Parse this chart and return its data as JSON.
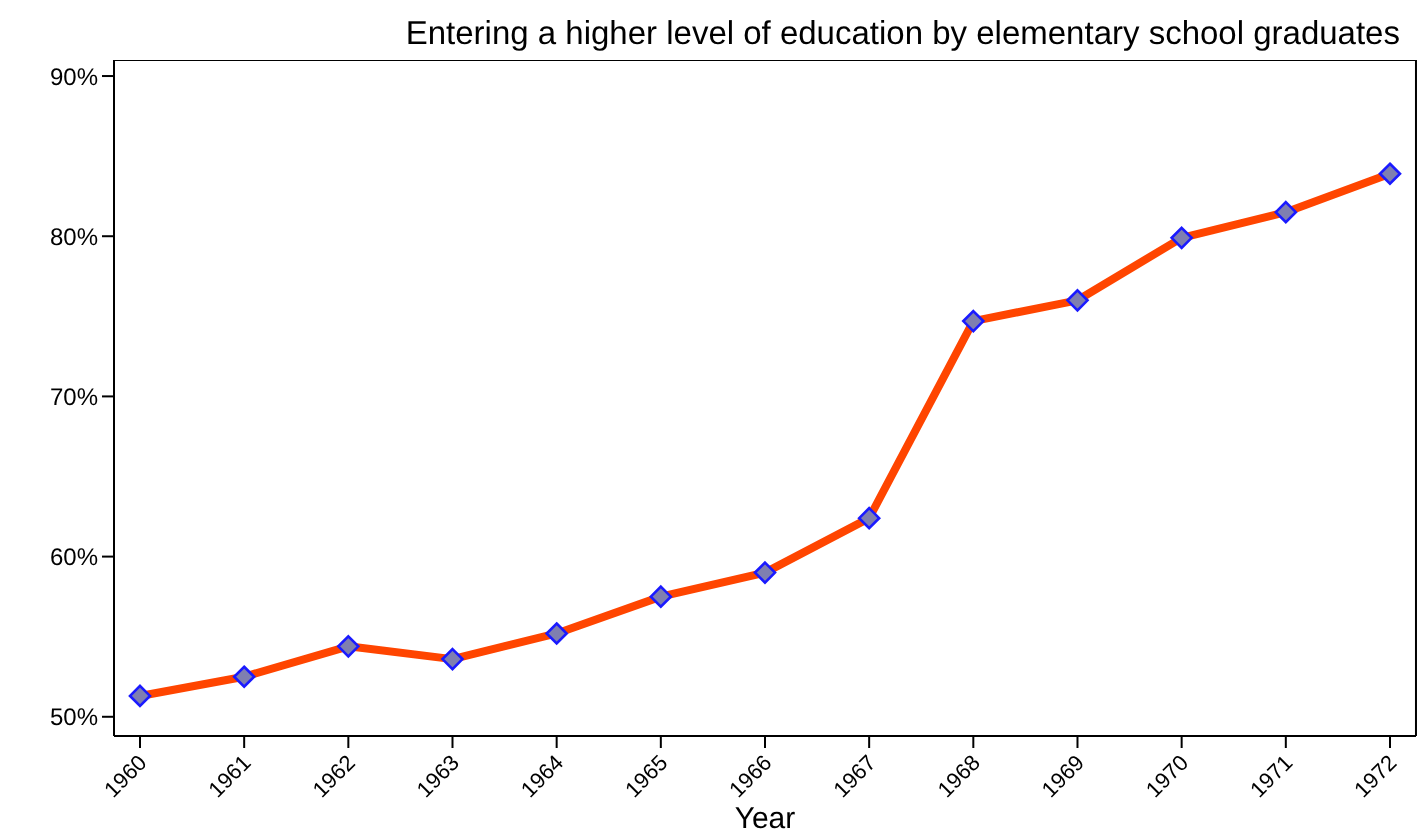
{
  "chart_data": {
    "type": "line",
    "title": "Entering a higher level of education by elementary school graduates",
    "xlabel": "Year",
    "categories": [
      "1960",
      "1961",
      "1962",
      "1963",
      "1964",
      "1965",
      "1966",
      "1967",
      "1968",
      "1969",
      "1970",
      "1971",
      "1972"
    ],
    "series": [
      {
        "color": "#ff4500",
        "values": [
          51.3,
          52.5,
          54.4,
          53.6,
          55.2,
          57.5,
          59,
          62.4,
          74.7,
          76,
          79.9,
          81.5,
          83.9
        ]
      }
    ],
    "ylim": [
      48.8,
      91
    ],
    "yticks": [
      {
        "value": 50,
        "label": "50%"
      },
      {
        "value": 60,
        "label": "60%"
      },
      {
        "value": 70,
        "label": "70%"
      },
      {
        "value": 80,
        "label": "80%"
      },
      {
        "value": 90,
        "label": "90%"
      }
    ],
    "grid": false,
    "legend": false,
    "marker": "diamond",
    "line_style": "solid"
  }
}
